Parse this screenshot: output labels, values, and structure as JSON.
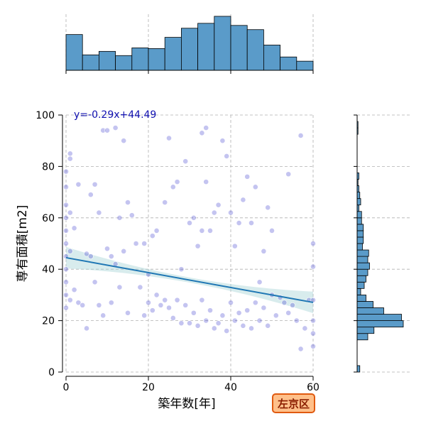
{
  "chart_data": {
    "type": "scatter",
    "xlabel": "築年数[年]",
    "ylabel": "専有面積[m2]",
    "xlim": [
      0,
      60
    ],
    "ylim": [
      0,
      100
    ],
    "x_ticks": [
      "0",
      "20",
      "40",
      "60"
    ],
    "y_ticks": [
      "0",
      "20",
      "40",
      "60",
      "80",
      "100"
    ],
    "grid": true,
    "regression": {
      "label": "y=-0.29x+44.49",
      "slope": -0.29,
      "intercept": 44.49
    },
    "badge": "左京区",
    "colors": {
      "point": "#2a2ac8",
      "line": "#1f77b4",
      "band": "#a8d4d8",
      "hist": "#5a9bc9"
    },
    "points": [
      [
        0,
        25
      ],
      [
        0,
        30
      ],
      [
        0,
        35
      ],
      [
        0,
        40
      ],
      [
        0,
        45
      ],
      [
        0,
        50
      ],
      [
        0,
        55
      ],
      [
        0,
        60
      ],
      [
        0,
        65
      ],
      [
        0,
        72
      ],
      [
        0,
        78
      ],
      [
        1,
        85
      ],
      [
        1,
        83
      ],
      [
        1,
        62
      ],
      [
        1,
        47
      ],
      [
        1,
        28
      ],
      [
        2,
        32
      ],
      [
        2,
        56
      ],
      [
        3,
        73
      ],
      [
        3,
        27
      ],
      [
        4,
        26
      ],
      [
        5,
        46
      ],
      [
        5,
        17
      ],
      [
        6,
        69
      ],
      [
        6,
        45
      ],
      [
        7,
        73
      ],
      [
        7,
        35
      ],
      [
        8,
        26
      ],
      [
        8,
        62
      ],
      [
        9,
        94
      ],
      [
        9,
        22
      ],
      [
        10,
        94
      ],
      [
        10,
        48
      ],
      [
        11,
        45
      ],
      [
        11,
        27
      ],
      [
        12,
        95
      ],
      [
        12,
        42
      ],
      [
        13,
        60
      ],
      [
        13,
        33
      ],
      [
        14,
        90
      ],
      [
        14,
        47
      ],
      [
        15,
        66
      ],
      [
        15,
        23
      ],
      [
        16,
        61
      ],
      [
        17,
        50
      ],
      [
        18,
        33
      ],
      [
        19,
        50
      ],
      [
        19,
        22
      ],
      [
        20,
        38
      ],
      [
        20,
        27
      ],
      [
        21,
        53
      ],
      [
        21,
        24
      ],
      [
        22,
        55
      ],
      [
        22,
        30
      ],
      [
        23,
        26
      ],
      [
        24,
        66
      ],
      [
        24,
        28
      ],
      [
        25,
        91
      ],
      [
        25,
        25
      ],
      [
        26,
        72
      ],
      [
        26,
        21
      ],
      [
        27,
        74
      ],
      [
        27,
        28
      ],
      [
        28,
        40
      ],
      [
        28,
        19
      ],
      [
        29,
        82
      ],
      [
        29,
        26
      ],
      [
        30,
        58
      ],
      [
        30,
        19
      ],
      [
        31,
        60
      ],
      [
        31,
        23
      ],
      [
        32,
        49
      ],
      [
        32,
        18
      ],
      [
        33,
        93
      ],
      [
        33,
        55
      ],
      [
        33,
        28
      ],
      [
        34,
        95
      ],
      [
        34,
        74
      ],
      [
        34,
        20
      ],
      [
        35,
        55
      ],
      [
        35,
        24
      ],
      [
        36,
        62
      ],
      [
        36,
        17
      ],
      [
        37,
        65
      ],
      [
        37,
        19
      ],
      [
        38,
        90
      ],
      [
        38,
        22
      ],
      [
        39,
        84
      ],
      [
        39,
        16
      ],
      [
        40,
        62
      ],
      [
        40,
        27
      ],
      [
        41,
        49
      ],
      [
        41,
        20
      ],
      [
        42,
        58
      ],
      [
        42,
        23
      ],
      [
        43,
        67
      ],
      [
        43,
        18
      ],
      [
        44,
        76
      ],
      [
        44,
        24
      ],
      [
        45,
        58
      ],
      [
        45,
        17
      ],
      [
        46,
        72
      ],
      [
        46,
        27
      ],
      [
        47,
        35
      ],
      [
        47,
        20
      ],
      [
        48,
        47
      ],
      [
        48,
        25
      ],
      [
        49,
        64
      ],
      [
        49,
        18
      ],
      [
        50,
        55
      ],
      [
        50,
        30
      ],
      [
        51,
        22
      ],
      [
        52,
        29
      ],
      [
        53,
        27
      ],
      [
        54,
        77
      ],
      [
        54,
        23
      ],
      [
        55,
        26
      ],
      [
        56,
        20
      ],
      [
        57,
        92
      ],
      [
        57,
        9
      ],
      [
        58,
        17
      ],
      [
        59,
        28
      ],
      [
        60,
        50
      ],
      [
        60,
        41
      ],
      [
        60,
        28
      ],
      [
        60,
        20
      ],
      [
        60,
        15
      ],
      [
        60,
        10
      ]
    ],
    "top_hist": {
      "bin_edges": [
        0,
        4,
        8,
        12,
        16,
        20,
        24,
        28,
        32,
        36,
        40,
        44,
        48,
        52,
        56,
        60
      ],
      "counts": [
        51,
        22,
        27,
        21,
        32,
        31,
        47,
        60,
        67,
        77,
        64,
        58,
        36,
        19,
        13
      ]
    },
    "right_hist": {
      "bin_edges": [
        0,
        2.5,
        5,
        7.5,
        10,
        12.5,
        15,
        17.5,
        20,
        22.5,
        25,
        27.5,
        30,
        32.5,
        35,
        37.5,
        40,
        42.5,
        45,
        47.5,
        50,
        52.5,
        55,
        57.5,
        60,
        62.5,
        65,
        67.5,
        70,
        72.5,
        75,
        77.5,
        80,
        82.5,
        85,
        87.5,
        90,
        92.5,
        95,
        97.5,
        100
      ],
      "counts": [
        3,
        0,
        0,
        0,
        0,
        12,
        19,
        52,
        50,
        30,
        18,
        10,
        4,
        8,
        10,
        12,
        14,
        12,
        13,
        6,
        7,
        7,
        7,
        5,
        5,
        2,
        4,
        3,
        2,
        1,
        2,
        0,
        0,
        0,
        0,
        0,
        0,
        1,
        1,
        0
      ]
    }
  }
}
